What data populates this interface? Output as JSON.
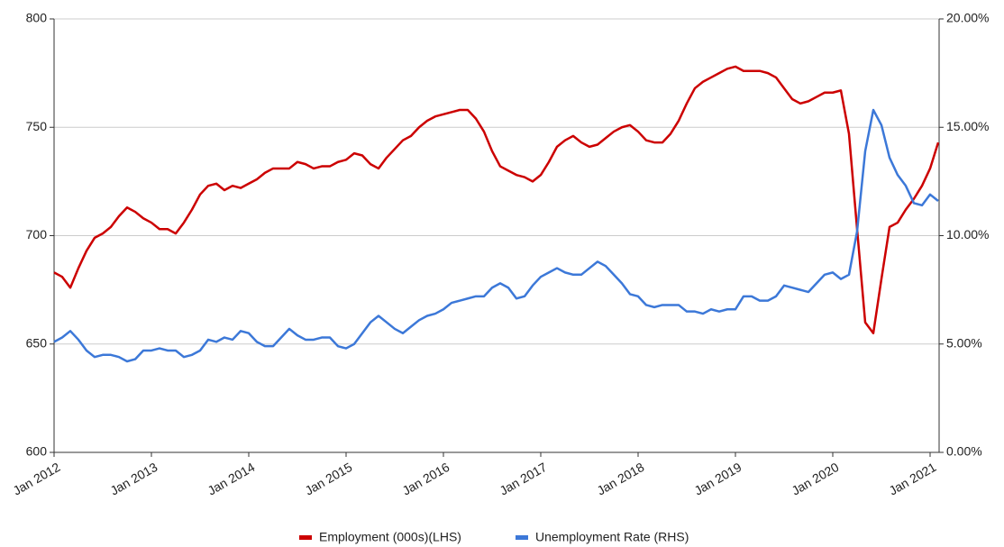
{
  "chart_data": {
    "type": "line",
    "categories": [
      "Jan 2012",
      null,
      null,
      null,
      null,
      null,
      null,
      null,
      null,
      null,
      null,
      null,
      "Jan 2013",
      null,
      null,
      null,
      null,
      null,
      null,
      null,
      null,
      null,
      null,
      null,
      "Jan 2014",
      null,
      null,
      null,
      null,
      null,
      null,
      null,
      null,
      null,
      null,
      null,
      "Jan 2015",
      null,
      null,
      null,
      null,
      null,
      null,
      null,
      null,
      null,
      null,
      null,
      "Jan 2016",
      null,
      null,
      null,
      null,
      null,
      null,
      null,
      null,
      null,
      null,
      null,
      "Jan 2017",
      null,
      null,
      null,
      null,
      null,
      null,
      null,
      null,
      null,
      null,
      null,
      "Jan 2018",
      null,
      null,
      null,
      null,
      null,
      null,
      null,
      null,
      null,
      null,
      null,
      "Jan 2019",
      null,
      null,
      null,
      null,
      null,
      null,
      null,
      null,
      null,
      null,
      null,
      "Jan 2020",
      null,
      null,
      null,
      null,
      null,
      null,
      null,
      null,
      null,
      null,
      null,
      "Jan 2021",
      null
    ],
    "series": [
      {
        "name": "Employment (000s)(LHS)",
        "color": "#cc0000",
        "axis": "y",
        "values": [
          683,
          681,
          676,
          685,
          693,
          699,
          701,
          704,
          709,
          713,
          711,
          708,
          706,
          703,
          703,
          701,
          706,
          712,
          719,
          723,
          724,
          721,
          723,
          722,
          724,
          726,
          729,
          731,
          731,
          731,
          734,
          733,
          731,
          732,
          732,
          734,
          735,
          738,
          737,
          733,
          731,
          736,
          740,
          744,
          746,
          750,
          753,
          755,
          756,
          757,
          758,
          758,
          754,
          748,
          739,
          732,
          730,
          728,
          727,
          725,
          728,
          734,
          741,
          744,
          746,
          743,
          741,
          742,
          745,
          748,
          750,
          751,
          748,
          744,
          743,
          743,
          747,
          753,
          761,
          768,
          771,
          773,
          775,
          777,
          778,
          776,
          776,
          776,
          775,
          773,
          768,
          763,
          761,
          762,
          764,
          766,
          766,
          767,
          747,
          703,
          660,
          655,
          680,
          704,
          706,
          712,
          717,
          723,
          731,
          743
        ]
      },
      {
        "name": "Unemployment Rate (RHS)",
        "color": "#3c78d8",
        "axis": "y2",
        "values": [
          5.1,
          5.3,
          5.6,
          5.2,
          4.7,
          4.4,
          4.5,
          4.5,
          4.4,
          4.2,
          4.3,
          4.7,
          4.7,
          4.8,
          4.7,
          4.7,
          4.4,
          4.5,
          4.7,
          5.2,
          5.1,
          5.3,
          5.2,
          5.6,
          5.5,
          5.1,
          4.9,
          4.9,
          5.3,
          5.7,
          5.4,
          5.2,
          5.2,
          5.3,
          5.3,
          4.9,
          4.8,
          5.0,
          5.5,
          6.0,
          6.3,
          6.0,
          5.7,
          5.5,
          5.8,
          6.1,
          6.3,
          6.4,
          6.6,
          6.9,
          7.0,
          7.1,
          7.2,
          7.2,
          7.6,
          7.8,
          7.6,
          7.1,
          7.2,
          7.7,
          8.1,
          8.3,
          8.5,
          8.3,
          8.2,
          8.2,
          8.5,
          8.8,
          8.6,
          8.2,
          7.8,
          7.3,
          7.2,
          6.8,
          6.7,
          6.8,
          6.8,
          6.8,
          6.5,
          6.5,
          6.4,
          6.6,
          6.5,
          6.6,
          6.6,
          7.2,
          7.2,
          7.0,
          7.0,
          7.2,
          7.7,
          7.6,
          7.5,
          7.4,
          7.8,
          8.2,
          8.3,
          8.0,
          8.2,
          10.2,
          13.9,
          15.8,
          15.1,
          13.6,
          12.8,
          12.3,
          11.5,
          11.4,
          11.9,
          11.6
        ]
      }
    ],
    "ylim": [
      600,
      800
    ],
    "yticks": [
      600,
      650,
      700,
      750,
      800
    ],
    "y2lim": [
      0,
      20
    ],
    "y2ticks": [
      {
        "value": 0,
        "label": "0.00%"
      },
      {
        "value": 5,
        "label": "5.00%"
      },
      {
        "value": 10,
        "label": "10.00%"
      },
      {
        "value": 15,
        "label": "15.00%"
      },
      {
        "value": 20,
        "label": "20.00%"
      }
    ],
    "grid": true,
    "legend": "bottom"
  }
}
